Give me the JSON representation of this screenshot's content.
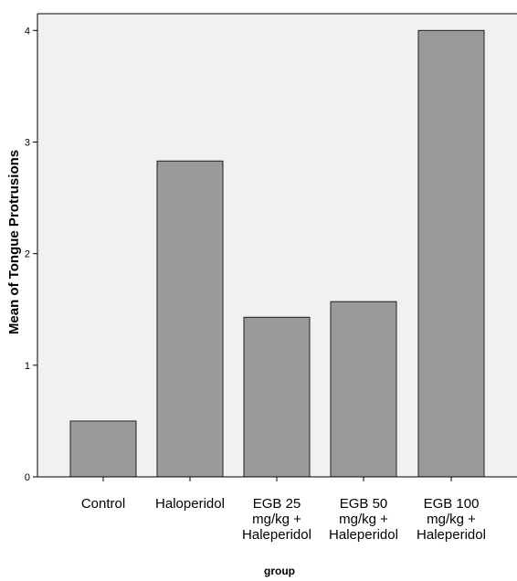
{
  "chart_data": {
    "type": "bar",
    "title": "",
    "xlabel": "group",
    "ylabel": "Mean of Tongue Protrusions",
    "categories": [
      [
        "Control"
      ],
      [
        "Haloperidol"
      ],
      [
        "EGB 25",
        "mg/kg +",
        "Haleperidol"
      ],
      [
        "EGB 50",
        "mg/kg +",
        "Haleperidol"
      ],
      [
        "EGB 100",
        "mg/kg +",
        "Haleperidol"
      ]
    ],
    "values": [
      0.5,
      2.83,
      1.43,
      1.57,
      4.0
    ],
    "ylim": [
      0,
      4.15
    ],
    "yticks": [
      "0",
      "1",
      "2",
      "3",
      "4"
    ],
    "grid": false,
    "colors": {
      "bar": "#9a9a9a",
      "bar_outline": "#1f1f1f",
      "plot_background": "#f1f1f1",
      "axis": "#000000"
    }
  }
}
